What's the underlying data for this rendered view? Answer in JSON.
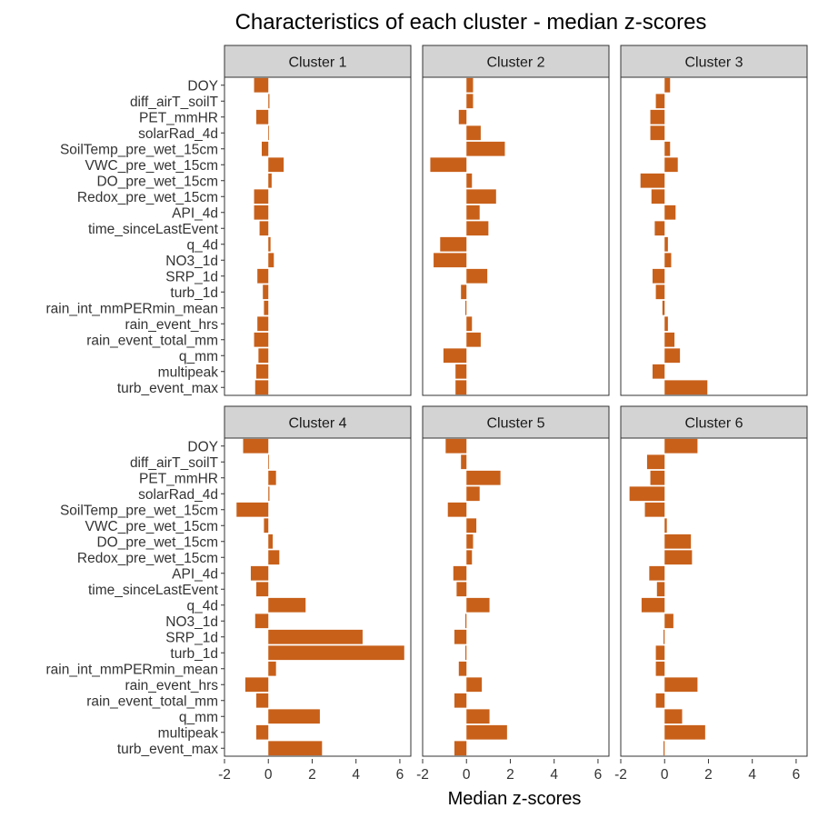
{
  "chart_data": {
    "type": "bar",
    "orientation": "horizontal",
    "title": "Characteristics of each cluster - median z-scores",
    "xlabel": "Median z-scores",
    "ylabel": "",
    "xlim": [
      -2,
      6.5
    ],
    "xticks": [
      -2,
      0,
      2,
      4,
      6
    ],
    "bar_color": "#c8601a",
    "strip_color": "#d3d3d3",
    "grid": false,
    "categories": [
      "DOY",
      "diff_airT_soilT",
      "PET_mmHR",
      "solarRad_4d",
      "SoilTemp_pre_wet_15cm",
      "VWC_pre_wet_15cm",
      "DO_pre_wet_15cm",
      "Redox_pre_wet_15cm",
      "API_4d",
      "time_sinceLastEvent",
      "q_4d",
      "NO3_1d",
      "SRP_1d",
      "turb_1d",
      "rain_int_mmPERmin_mean",
      "rain_event_hrs",
      "rain_event_total_mm",
      "q_mm",
      "multipeak",
      "turb_event_max"
    ],
    "series": [
      {
        "name": "Cluster 1",
        "values": [
          -0.65,
          0.05,
          -0.55,
          0.03,
          -0.3,
          0.7,
          0.15,
          -0.65,
          -0.65,
          -0.4,
          0.1,
          0.25,
          -0.5,
          -0.25,
          -0.2,
          -0.5,
          -0.65,
          -0.45,
          -0.55,
          -0.6
        ]
      },
      {
        "name": "Cluster 2",
        "values": [
          0.3,
          0.3,
          -0.35,
          0.65,
          1.75,
          -1.65,
          0.25,
          1.35,
          0.6,
          1.0,
          -1.2,
          -1.5,
          0.95,
          -0.25,
          -0.05,
          0.25,
          0.65,
          -1.05,
          -0.5,
          -0.5
        ]
      },
      {
        "name": "Cluster 3",
        "values": [
          0.25,
          -0.4,
          -0.65,
          -0.65,
          0.25,
          0.6,
          -1.1,
          -0.6,
          0.5,
          -0.45,
          0.15,
          0.3,
          -0.55,
          -0.4,
          -0.1,
          0.15,
          0.45,
          0.7,
          -0.55,
          1.95
        ]
      },
      {
        "name": "Cluster 4",
        "values": [
          -1.15,
          0.02,
          0.35,
          0.05,
          -1.45,
          -0.2,
          0.2,
          0.5,
          -0.8,
          -0.55,
          1.7,
          -0.6,
          4.3,
          6.2,
          0.35,
          -1.05,
          -0.55,
          2.35,
          -0.55,
          2.45
        ]
      },
      {
        "name": "Cluster 5",
        "values": [
          -0.95,
          -0.25,
          1.55,
          0.6,
          -0.85,
          0.45,
          0.3,
          0.25,
          -0.6,
          -0.45,
          1.05,
          -0.05,
          -0.55,
          -0.05,
          -0.35,
          0.7,
          -0.55,
          1.05,
          1.85,
          -0.55
        ]
      },
      {
        "name": "Cluster 6",
        "values": [
          1.5,
          -0.8,
          -0.65,
          -1.6,
          -0.9,
          0.1,
          1.2,
          1.25,
          -0.7,
          -0.35,
          -1.05,
          0.4,
          -0.05,
          -0.4,
          -0.4,
          1.5,
          -0.4,
          0.8,
          1.85,
          -0.05
        ]
      }
    ]
  }
}
